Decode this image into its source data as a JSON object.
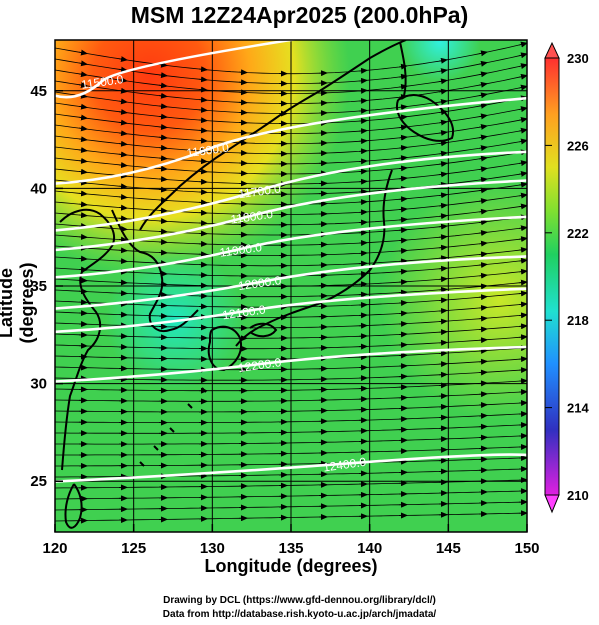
{
  "title": "MSM 12Z24Apr2025 (200.0hPa)",
  "xlabel": "Longitude (degrees)",
  "ylabel": "Latitude  (degrees)",
  "credits": [
    "Drawing by DCL (https://www.gfd-dennou.org/library/dcl/)",
    "Data from http://database.rish.kyoto-u.ac.jp/arch/jmadata/"
  ],
  "map": {
    "lon_range": [
      120,
      150
    ],
    "lat_range": [
      22.4,
      47.6
    ],
    "lon_ticks": [
      "120",
      "125",
      "130",
      "135",
      "140",
      "145",
      "150"
    ],
    "lat_ticks": [
      "25",
      "30",
      "35",
      "40",
      "45"
    ],
    "colorbar": {
      "min": 210,
      "max": 230,
      "ticks": [
        "230",
        "226",
        "222",
        "218",
        "214",
        "210"
      ],
      "colors": [
        "#e020e0",
        "#2020c0",
        "#1f9fff",
        "#20e0d0",
        "#20d060",
        "#80e030",
        "#e0e020",
        "#ffb020",
        "#ff4010",
        "#ff3030"
      ]
    },
    "contour_labels": [
      {
        "text": "11500.0",
        "lon": 123.0,
        "lat": 45.5
      },
      {
        "text": "11600.0",
        "lon": 129.7,
        "lat": 42.0
      },
      {
        "text": "11700.0",
        "lon": 133.0,
        "lat": 39.9
      },
      {
        "text": "11800.0",
        "lon": 132.5,
        "lat": 38.6
      },
      {
        "text": "11900.0",
        "lon": 131.8,
        "lat": 36.9
      },
      {
        "text": "12000.0",
        "lon": 133.0,
        "lat": 35.2
      },
      {
        "text": "12100.0",
        "lon": 132.0,
        "lat": 33.7
      },
      {
        "text": "12200.0",
        "lon": 133.0,
        "lat": 31.0
      },
      {
        "text": "12400.0",
        "lon": 138.4,
        "lat": 25.9
      }
    ]
  }
}
